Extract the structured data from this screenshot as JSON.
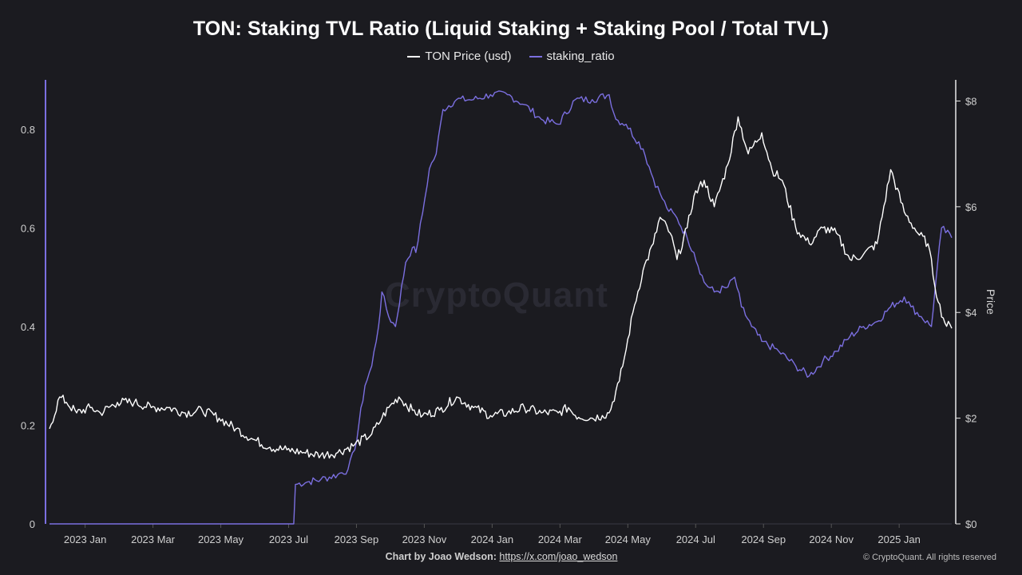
{
  "chart_data": {
    "type": "line",
    "title": "TON: Staking TVL Ratio (Liquid Staking + Staking Pool / Total TVL)",
    "legend": [
      {
        "name": "TON Price (usd)",
        "color": "#ffffff"
      },
      {
        "name": "staking_ratio",
        "color": "#7b6fe0"
      }
    ],
    "legend_position": "top-center",
    "x_ticks": [
      "2023 Jan",
      "2023 Mar",
      "2023 May",
      "2023 Jul",
      "2023 Sep",
      "2023 Nov",
      "2024 Jan",
      "2024 Mar",
      "2024 May",
      "2024 Jul",
      "2024 Sep",
      "2024 Nov",
      "2025 Jan"
    ],
    "y_left_ticks": [
      "0",
      "0.2",
      "0.4",
      "0.6",
      "0.8"
    ],
    "y_left_range": [
      0,
      0.9
    ],
    "y_right_ticks": [
      "$0",
      "$2",
      "$4",
      "$6",
      "$8"
    ],
    "y_right_range": [
      0,
      8.4
    ],
    "ylabel_right": "Price",
    "x_range_months": [
      0,
      26.6
    ],
    "series": [
      {
        "name": "staking_ratio",
        "axis": "left",
        "points": [
          [
            0,
            0
          ],
          [
            7.2,
            0
          ],
          [
            7.25,
            0.08
          ],
          [
            7.6,
            0.085
          ],
          [
            8,
            0.09
          ],
          [
            8.5,
            0.1
          ],
          [
            8.8,
            0.11
          ],
          [
            9,
            0.15
          ],
          [
            9.3,
            0.28
          ],
          [
            9.5,
            0.32
          ],
          [
            9.7,
            0.4
          ],
          [
            9.8,
            0.47
          ],
          [
            10,
            0.42
          ],
          [
            10.2,
            0.4
          ],
          [
            10.5,
            0.53
          ],
          [
            10.7,
            0.56
          ],
          [
            10.8,
            0.55
          ],
          [
            11,
            0.63
          ],
          [
            11.2,
            0.72
          ],
          [
            11.4,
            0.75
          ],
          [
            11.6,
            0.84
          ],
          [
            12,
            0.86
          ],
          [
            12.5,
            0.86
          ],
          [
            13,
            0.87
          ],
          [
            13.5,
            0.87
          ],
          [
            14,
            0.85
          ],
          [
            14.5,
            0.82
          ],
          [
            15,
            0.81
          ],
          [
            15.5,
            0.86
          ],
          [
            16,
            0.86
          ],
          [
            16.5,
            0.87
          ],
          [
            16.7,
            0.82
          ],
          [
            17,
            0.81
          ],
          [
            17.5,
            0.76
          ],
          [
            17.8,
            0.7
          ],
          [
            18,
            0.67
          ],
          [
            18.2,
            0.64
          ],
          [
            18.5,
            0.62
          ],
          [
            18.8,
            0.58
          ],
          [
            19,
            0.55
          ],
          [
            19.3,
            0.49
          ],
          [
            19.6,
            0.47
          ],
          [
            20,
            0.48
          ],
          [
            20.2,
            0.5
          ],
          [
            20.4,
            0.44
          ],
          [
            20.7,
            0.4
          ],
          [
            21,
            0.37
          ],
          [
            21.5,
            0.35
          ],
          [
            22,
            0.32
          ],
          [
            22.4,
            0.3
          ],
          [
            22.8,
            0.33
          ],
          [
            23.2,
            0.35
          ],
          [
            23.6,
            0.38
          ],
          [
            24,
            0.4
          ],
          [
            24.4,
            0.41
          ],
          [
            24.8,
            0.44
          ],
          [
            25.2,
            0.46
          ],
          [
            25.4,
            0.44
          ],
          [
            25.7,
            0.42
          ],
          [
            26,
            0.4
          ],
          [
            26.1,
            0.47
          ],
          [
            26.3,
            0.6
          ],
          [
            26.6,
            0.58
          ]
        ]
      },
      {
        "name": "TON Price (usd)",
        "axis": "right",
        "points": [
          [
            0,
            1.8
          ],
          [
            0.3,
            2.4
          ],
          [
            0.5,
            2.3
          ],
          [
            0.8,
            2.1
          ],
          [
            1.2,
            2.2
          ],
          [
            1.5,
            2.1
          ],
          [
            2,
            2.3
          ],
          [
            2.5,
            2.3
          ],
          [
            3,
            2.2
          ],
          [
            3.5,
            2.2
          ],
          [
            4,
            2.1
          ],
          [
            4.5,
            2.15
          ],
          [
            5,
            2.0
          ],
          [
            5.5,
            1.8
          ],
          [
            6,
            1.6
          ],
          [
            6.5,
            1.45
          ],
          [
            7,
            1.4
          ],
          [
            7.5,
            1.35
          ],
          [
            8,
            1.3
          ],
          [
            8.5,
            1.35
          ],
          [
            9,
            1.5
          ],
          [
            9.5,
            1.7
          ],
          [
            9.8,
            2.0
          ],
          [
            10,
            2.2
          ],
          [
            10.3,
            2.4
          ],
          [
            10.7,
            2.15
          ],
          [
            11,
            2.05
          ],
          [
            11.5,
            2.15
          ],
          [
            12,
            2.4
          ],
          [
            12.5,
            2.2
          ],
          [
            13,
            2.05
          ],
          [
            13.5,
            2.1
          ],
          [
            14,
            2.2
          ],
          [
            14.5,
            2.1
          ],
          [
            15,
            2.1
          ],
          [
            15.3,
            2.2
          ],
          [
            15.5,
            2.05
          ],
          [
            16,
            2.0
          ],
          [
            16.3,
            2.05
          ],
          [
            16.5,
            2.1
          ],
          [
            16.8,
            2.7
          ],
          [
            17,
            3.3
          ],
          [
            17.2,
            4.0
          ],
          [
            17.5,
            4.8
          ],
          [
            17.8,
            5.3
          ],
          [
            18,
            5.8
          ],
          [
            18.3,
            5.5
          ],
          [
            18.5,
            5.0
          ],
          [
            18.8,
            5.6
          ],
          [
            19,
            6.2
          ],
          [
            19.3,
            6.5
          ],
          [
            19.6,
            6.0
          ],
          [
            20,
            6.8
          ],
          [
            20.3,
            7.7
          ],
          [
            20.6,
            7.0
          ],
          [
            21,
            7.4
          ],
          [
            21.3,
            6.7
          ],
          [
            21.6,
            6.5
          ],
          [
            22,
            5.6
          ],
          [
            22.4,
            5.3
          ],
          [
            22.8,
            5.6
          ],
          [
            23.2,
            5.5
          ],
          [
            23.6,
            5.0
          ],
          [
            24,
            5.1
          ],
          [
            24.4,
            5.3
          ],
          [
            24.8,
            6.7
          ],
          [
            25.2,
            5.9
          ],
          [
            25.6,
            5.5
          ],
          [
            25.9,
            5.3
          ],
          [
            26.2,
            4.2
          ],
          [
            26.4,
            3.8
          ],
          [
            26.6,
            3.7
          ]
        ]
      }
    ]
  },
  "footer": {
    "credit_prefix": "Chart by Joao Wedson:",
    "credit_link": "https://x.com/joao_wedson",
    "copyright": "© CryptoQuant. All rights reserved"
  },
  "watermark": "CryptoQuant"
}
